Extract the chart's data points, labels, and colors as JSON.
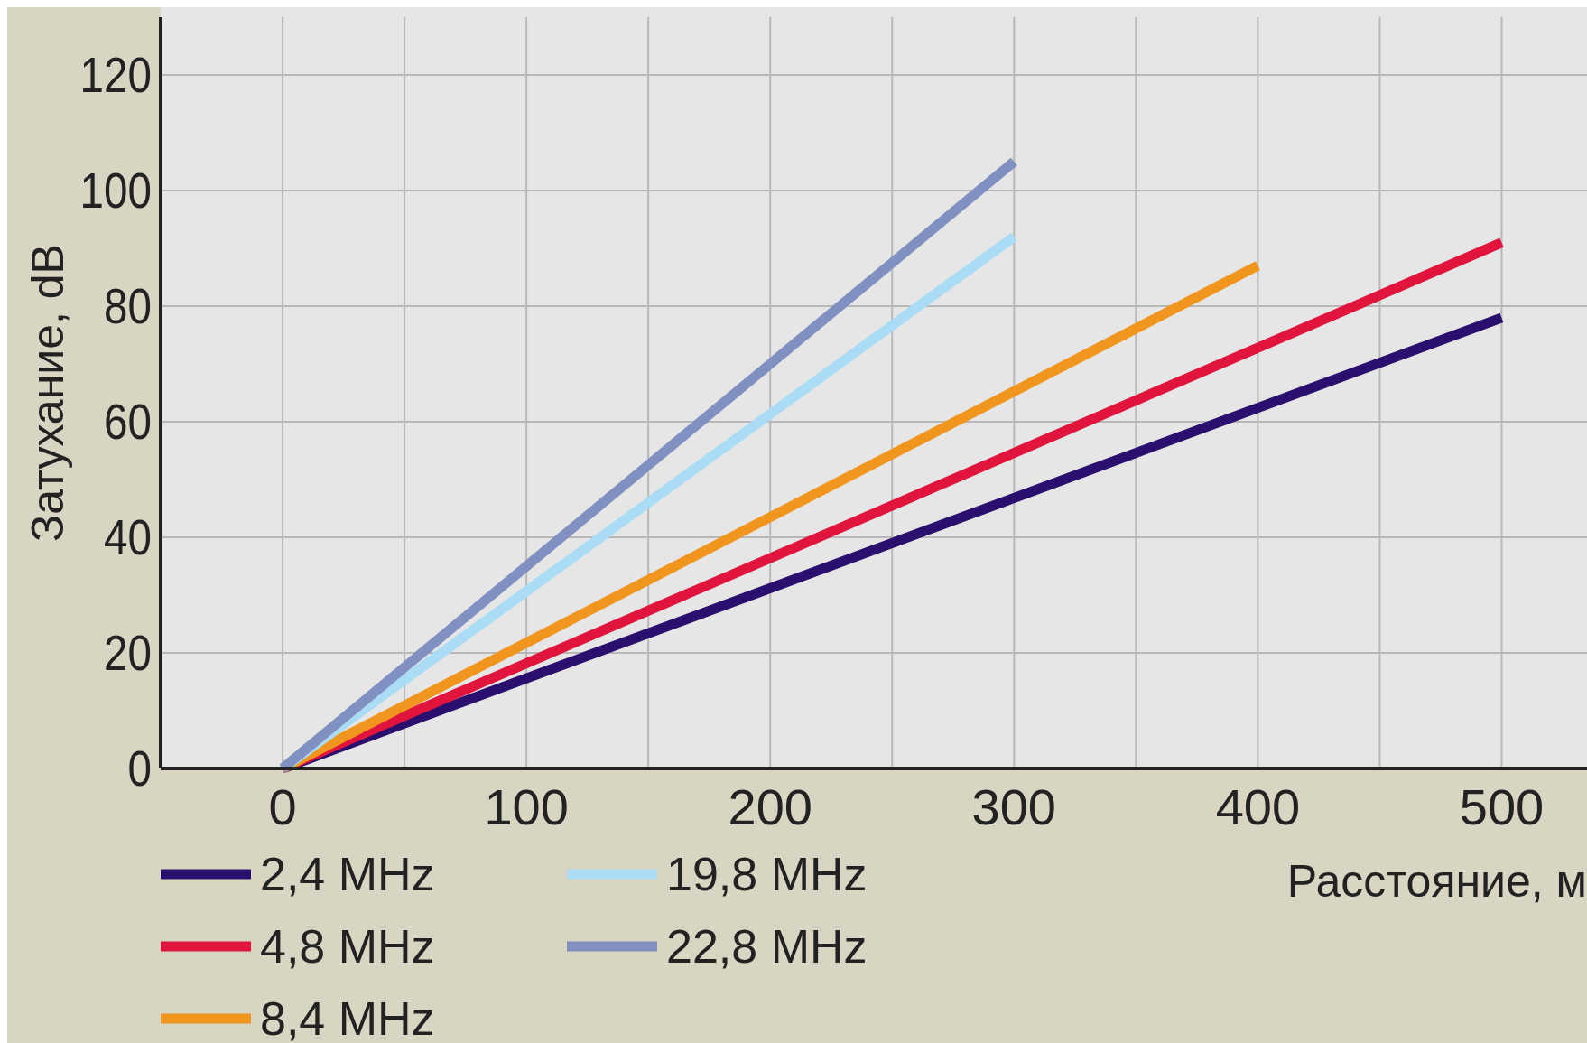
{
  "chart_data": {
    "type": "line",
    "xlabel": "Расстояние, м",
    "ylabel": "Затухание, dB",
    "xlim": [
      -50,
      535
    ],
    "ylim": [
      0,
      130
    ],
    "xticks": [
      0,
      {
        "value": 50,
        "label": null
      },
      100,
      {
        "value": 150,
        "label": null
      },
      200,
      {
        "value": 250,
        "label": null
      },
      300,
      {
        "value": 350,
        "label": null
      },
      400,
      {
        "value": 450,
        "label": null
      },
      500
    ],
    "yticks": [
      0,
      20,
      40,
      60,
      80,
      100,
      120
    ],
    "grid": true,
    "legend": "bottom",
    "marker": "none",
    "line_style": "solid",
    "series": [
      {
        "name": "2,4 MHz",
        "color": "#2a0f6e",
        "x": [
          0,
          500
        ],
        "values": [
          0,
          78
        ]
      },
      {
        "name": "4,8 MHz",
        "color": "#e0143c",
        "x": [
          0,
          500
        ],
        "values": [
          0,
          91
        ]
      },
      {
        "name": "8,4 MHz",
        "color": "#f0961e",
        "x": [
          0,
          400
        ],
        "values": [
          0,
          87
        ]
      },
      {
        "name": "19,8 MHz",
        "color": "#aadcf5",
        "x": [
          0,
          300
        ],
        "values": [
          0,
          92
        ]
      },
      {
        "name": "22,8 MHz",
        "color": "#8090c0",
        "x": [
          0,
          300
        ],
        "values": [
          0,
          105
        ]
      }
    ]
  }
}
